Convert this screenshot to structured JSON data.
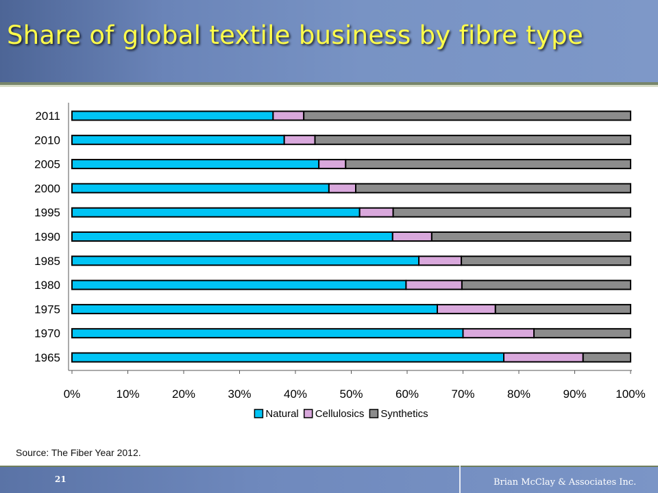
{
  "slide": {
    "title": "Share of global textile business by fibre type",
    "source": "Source:  The Fiber Year 2012.",
    "page_number": "21",
    "company": "Brian McClay & Associates Inc."
  },
  "colors": {
    "header": "#6a84b8",
    "title": "#fffd4a",
    "natural": "#00c4f5",
    "cellulosics": "#d9a8dc",
    "synthetics": "#8c8c8c",
    "bar_outline": "#000000"
  },
  "chart_data": {
    "type": "bar",
    "orientation": "horizontal",
    "stacked": true,
    "title": "",
    "xlabel": "",
    "ylabel": "",
    "xlim": [
      0,
      100
    ],
    "x_ticks": [
      "0%",
      "10%",
      "20%",
      "30%",
      "40%",
      "50%",
      "60%",
      "70%",
      "80%",
      "90%",
      "100%"
    ],
    "categories": [
      "2011",
      "2010",
      "2005",
      "2000",
      "1995",
      "1990",
      "1985",
      "1980",
      "1975",
      "1970",
      "1965"
    ],
    "series": [
      {
        "name": "Natural",
        "color": "#00c4f5",
        "values": [
          36.0,
          38.0,
          44.2,
          46.0,
          51.5,
          57.4,
          62.1,
          59.8,
          65.4,
          70.0,
          77.3
        ]
      },
      {
        "name": "Cellulosics",
        "color": "#d9a8dc",
        "values": [
          5.5,
          5.5,
          4.8,
          4.8,
          6.0,
          7.0,
          7.6,
          10.0,
          10.4,
          12.7,
          14.2
        ]
      },
      {
        "name": "Synthetics",
        "color": "#8c8c8c",
        "values": [
          58.5,
          56.5,
          51.0,
          49.2,
          42.5,
          35.6,
          30.3,
          30.2,
          24.2,
          17.3,
          8.5
        ]
      }
    ],
    "legend": {
      "position": "bottom",
      "items": [
        "Natural",
        "Cellulosics",
        "Synthetics"
      ]
    },
    "grid": false
  }
}
